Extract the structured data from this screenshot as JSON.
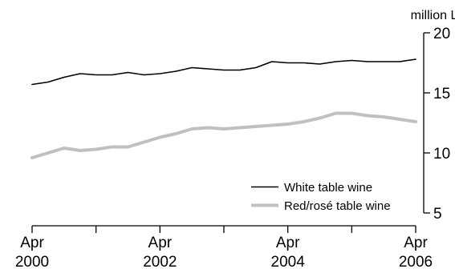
{
  "chart_data": {
    "type": "line",
    "title": "",
    "xlabel": "",
    "ylabel": "million L",
    "ylim": [
      5,
      20
    ],
    "yticks": [
      5,
      10,
      15,
      20
    ],
    "xlim": [
      "2000-04",
      "2006-04"
    ],
    "xticks": [
      {
        "date": "2000-04",
        "month": "Apr",
        "year": "2000"
      },
      {
        "date": "2002-04",
        "month": "Apr",
        "year": "2002"
      },
      {
        "date": "2004-04",
        "month": "Apr",
        "year": "2004"
      },
      {
        "date": "2006-04",
        "month": "Apr",
        "year": "2006"
      }
    ],
    "minor_xticks": [
      "2001-04",
      "2003-04",
      "2005-04"
    ],
    "grid": false,
    "legend_position": "bottom-right",
    "x": [
      "2000-04",
      "2000-07",
      "2000-10",
      "2001-01",
      "2001-04",
      "2001-07",
      "2001-10",
      "2002-01",
      "2002-04",
      "2002-07",
      "2002-10",
      "2003-01",
      "2003-04",
      "2003-07",
      "2003-10",
      "2004-01",
      "2004-04",
      "2004-07",
      "2004-10",
      "2005-01",
      "2005-04",
      "2005-07",
      "2005-10",
      "2006-01",
      "2006-04"
    ],
    "series": [
      {
        "name": "White table wine",
        "color": "#000000",
        "values": [
          15.7,
          15.9,
          16.3,
          16.6,
          16.5,
          16.5,
          16.7,
          16.5,
          16.6,
          16.8,
          17.1,
          17.0,
          16.9,
          16.9,
          17.1,
          17.6,
          17.5,
          17.5,
          17.4,
          17.6,
          17.7,
          17.6,
          17.6,
          17.6,
          17.8
        ]
      },
      {
        "name": "Red/rosé table wine",
        "color": "#c0c0c0",
        "values": [
          9.6,
          10.0,
          10.4,
          10.2,
          10.3,
          10.5,
          10.5,
          10.9,
          11.3,
          11.6,
          12.0,
          12.1,
          12.0,
          12.1,
          12.2,
          12.3,
          12.4,
          12.6,
          12.9,
          13.3,
          13.3,
          13.1,
          13.0,
          12.8,
          12.6
        ]
      }
    ]
  }
}
